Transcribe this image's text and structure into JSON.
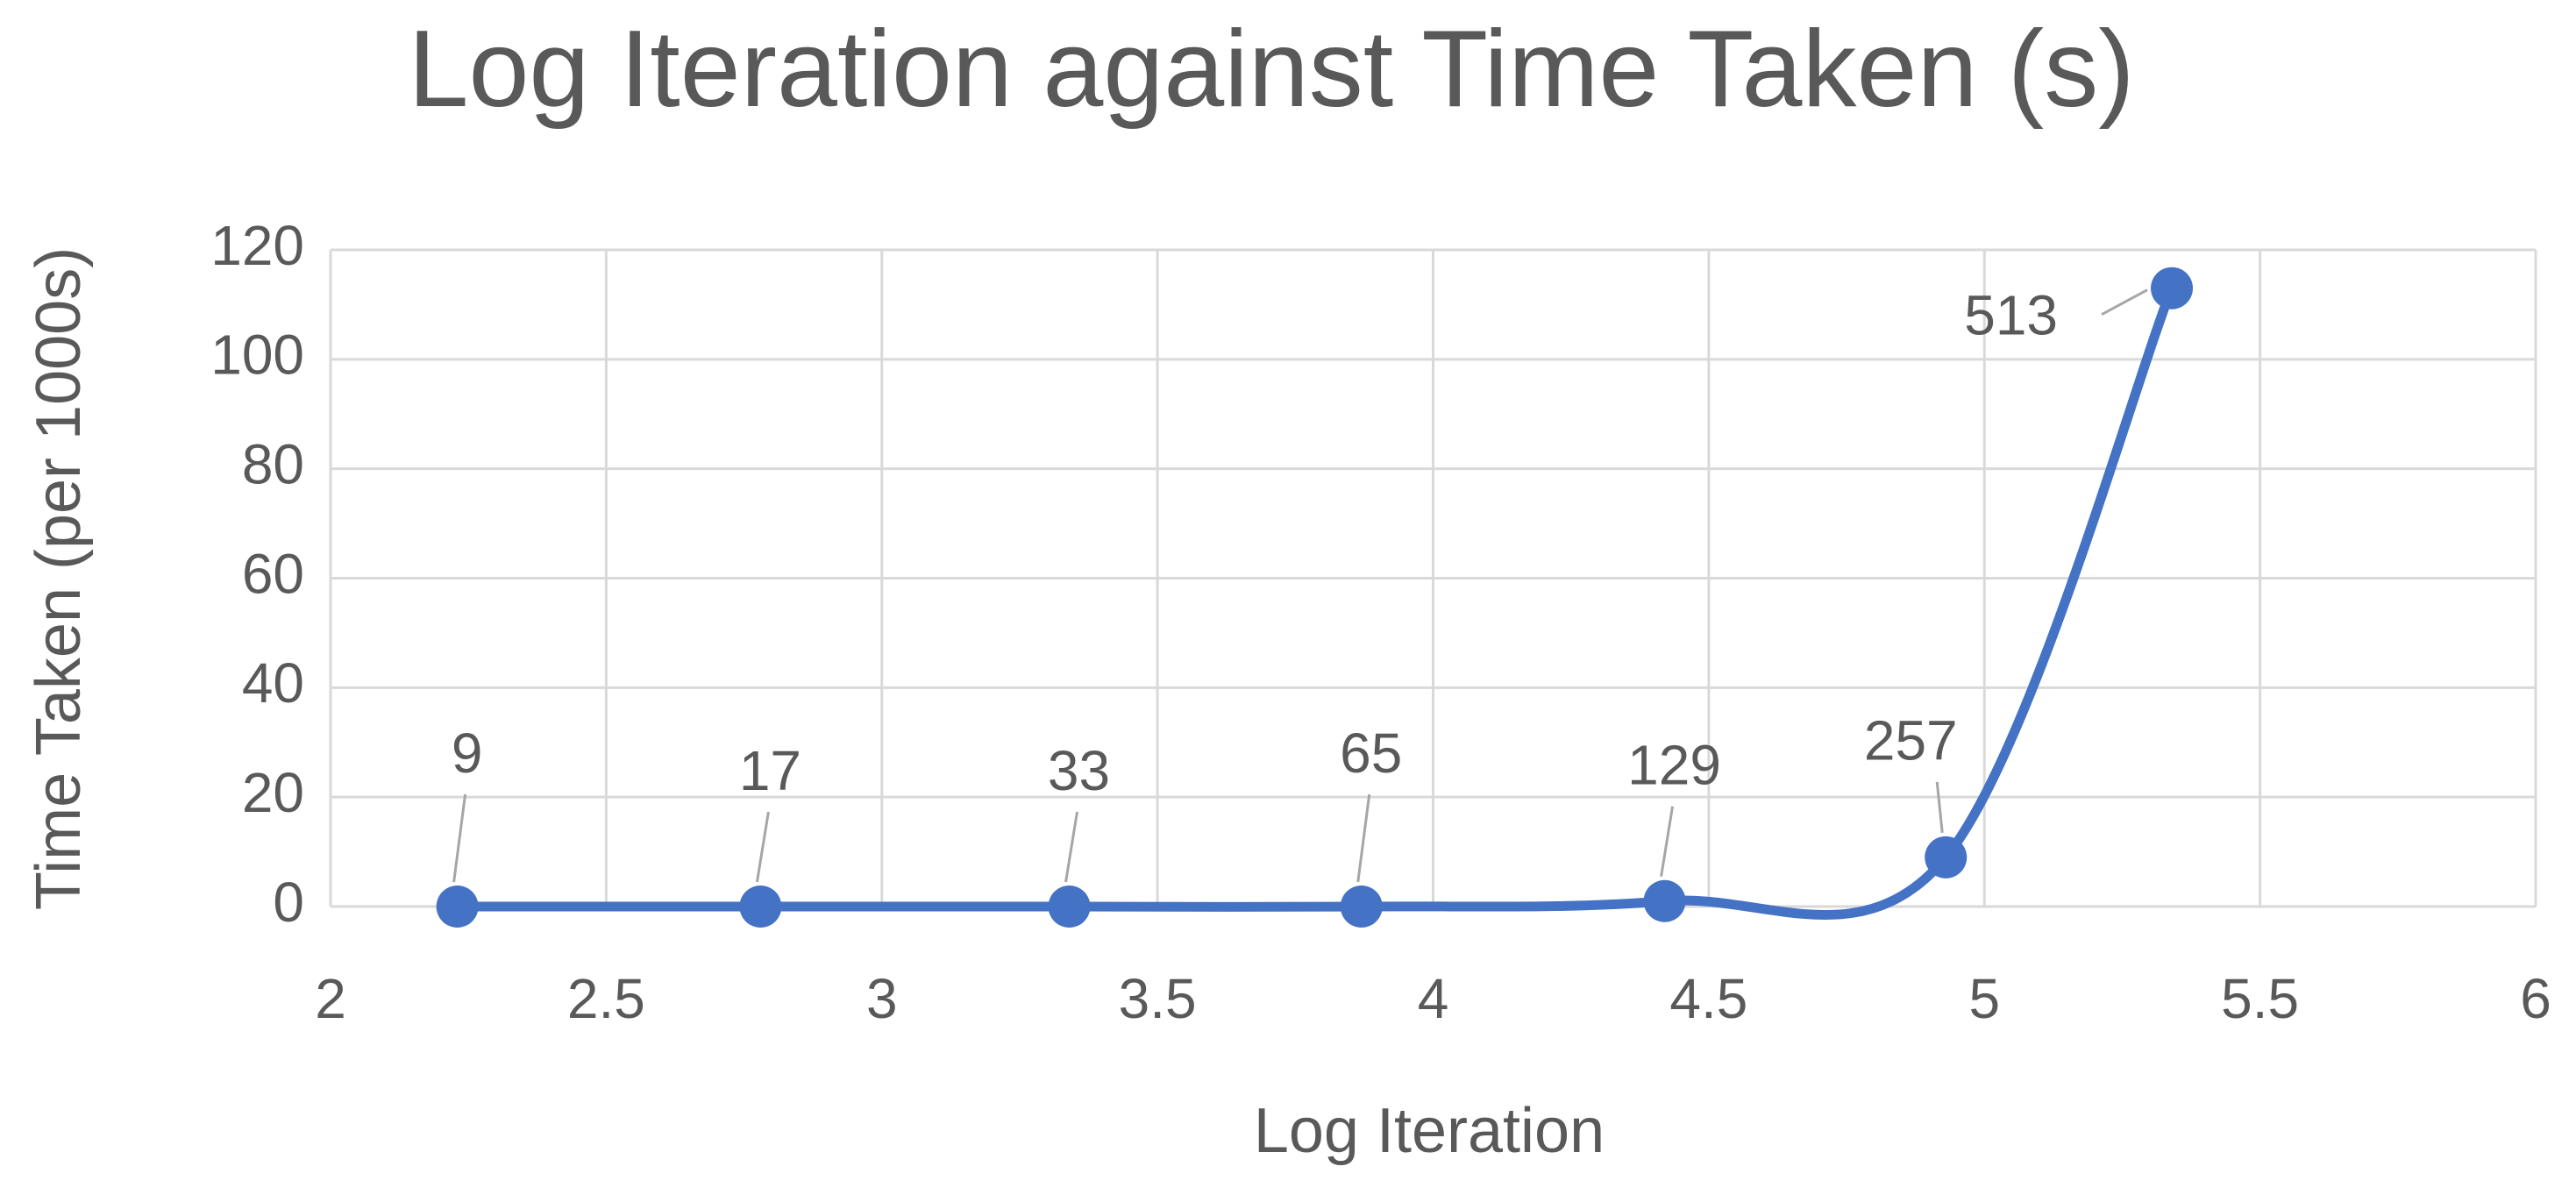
{
  "chart_data": {
    "type": "line",
    "title": "Log Iteration against Time Taken (s)",
    "x_label": "Log Iteration",
    "y_label": "Time Taken (per 1000s)",
    "x": [
      2.23,
      2.78,
      3.34,
      3.87,
      4.42,
      4.93,
      5.34
    ],
    "series": [
      {
        "name": "Time Taken",
        "color": "#4472c4",
        "values": [
          0,
          0,
          0,
          0,
          1,
          9,
          113
        ]
      }
    ],
    "annotations": [
      9,
      17,
      33,
      65,
      129,
      257,
      513
    ],
    "xlim": [
      2,
      6
    ],
    "xticks": [
      2,
      2.5,
      3,
      3.5,
      4,
      4.5,
      5,
      5.5,
      6
    ],
    "ylim": [
      0,
      120
    ],
    "yticks": [
      0,
      20,
      40,
      60,
      80,
      100,
      120
    ],
    "grid": true,
    "smooth": true
  }
}
